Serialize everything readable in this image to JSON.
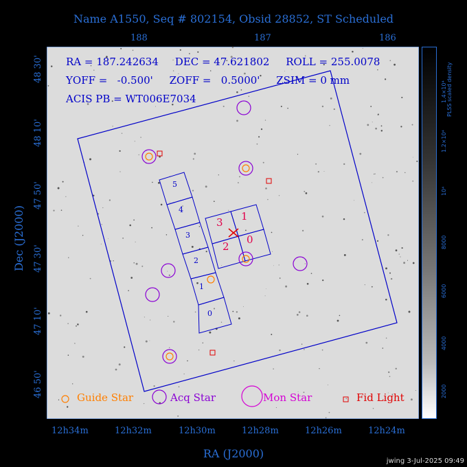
{
  "title": "Name A1550, Seq # 802154, Obsid 28852, ST Scheduled",
  "top_axis": [
    "188",
    "187",
    "186"
  ],
  "y_ticks": [
    "48 30'",
    "48 10'",
    "47 50'",
    "47 30'",
    "47 10'",
    "46 50'"
  ],
  "x_ticks": [
    "12h34m",
    "12h32m",
    "12h30m",
    "12h28m",
    "12h26m",
    "12h24m"
  ],
  "x_label": "RA (J2000)",
  "y_label": "Dec (J2000)",
  "info": {
    "line1": "RA = 187.242634     DEC = 47.621802     ROLL = 255.0078",
    "line2": "YOFF =   -0.500'     ZOFF =   0.5000'     ZSIM = 0 mm",
    "line3": "ACIS PB = WT006E7034"
  },
  "chips": {
    "s_chips": [
      "5",
      "4",
      "3",
      "2",
      "1",
      "0"
    ],
    "i_chips": [
      "3",
      "1",
      "2",
      "0"
    ]
  },
  "legend": {
    "guide": "Guide Star",
    "acq": "Acq Star",
    "mon": "Mon Star",
    "fid": "Fid Light"
  },
  "colorbar": {
    "title": "PLSS scaled density",
    "ticks": [
      "1.4×10⁴",
      "1.2×10⁴",
      "10⁴",
      "8000",
      "6000",
      "4000",
      "2000"
    ]
  },
  "colors": {
    "axis": "#2a6fd6",
    "fov": "#0000c8",
    "guide": "#ff7f00",
    "acq": "#8a00d4",
    "mon": "#d400d4",
    "fid": "#e00000",
    "chip_label": "#e0004a"
  },
  "footer": "jwing   3-Jul-2025 09:49"
}
